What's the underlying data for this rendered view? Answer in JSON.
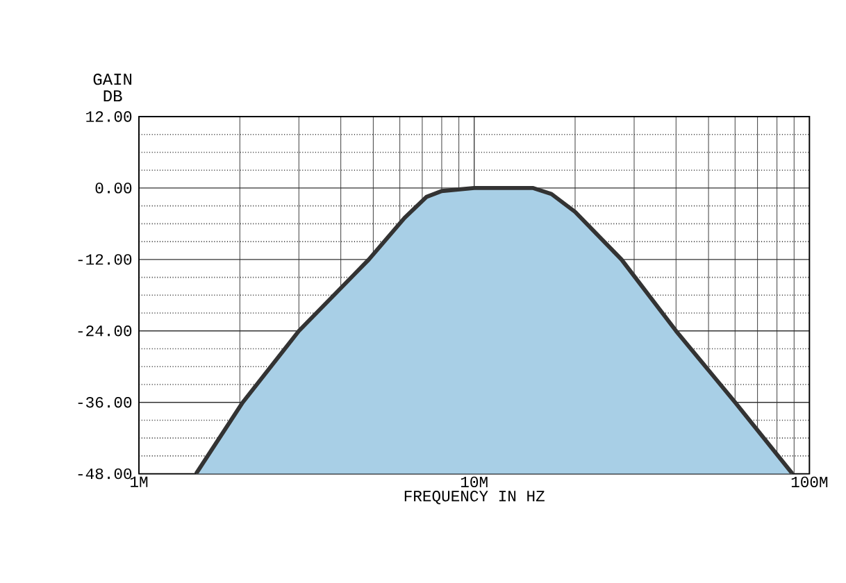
{
  "chart_data": {
    "type": "area",
    "xlabel": "FREQUENCY IN HZ",
    "ylabel": "GAIN DB",
    "log": "x",
    "xlim": [
      1000000,
      100000000
    ],
    "xticks": [
      {
        "value": 1000000,
        "label": "1M"
      },
      {
        "value": 10000000,
        "label": "10M"
      },
      {
        "value": 100000000,
        "label": "100M"
      }
    ],
    "ylim": [
      -48,
      12
    ],
    "yticks": [
      {
        "value": -48,
        "label": "-48.00"
      },
      {
        "value": -36,
        "label": "-36.00"
      },
      {
        "value": -24,
        "label": "-24.00"
      },
      {
        "value": -12,
        "label": "-12.00"
      },
      {
        "value": 0,
        "label": "0.00"
      },
      {
        "value": 12,
        "label": "12.00"
      }
    ],
    "grid": true,
    "x": [
      1480000,
      2040000,
      3000000,
      4850000,
      6200000,
      7200000,
      8000000,
      10000000,
      15000000,
      17000000,
      20000000,
      27500000,
      40000000,
      60000000,
      89000000
    ],
    "series": [
      {
        "color": "#a8cfe6",
        "values": [
          -48,
          -36,
          -24,
          -12,
          -5,
          -1.5,
          -0.5,
          0,
          0,
          -1,
          -4,
          -12,
          -24,
          -36,
          -48
        ]
      }
    ]
  }
}
